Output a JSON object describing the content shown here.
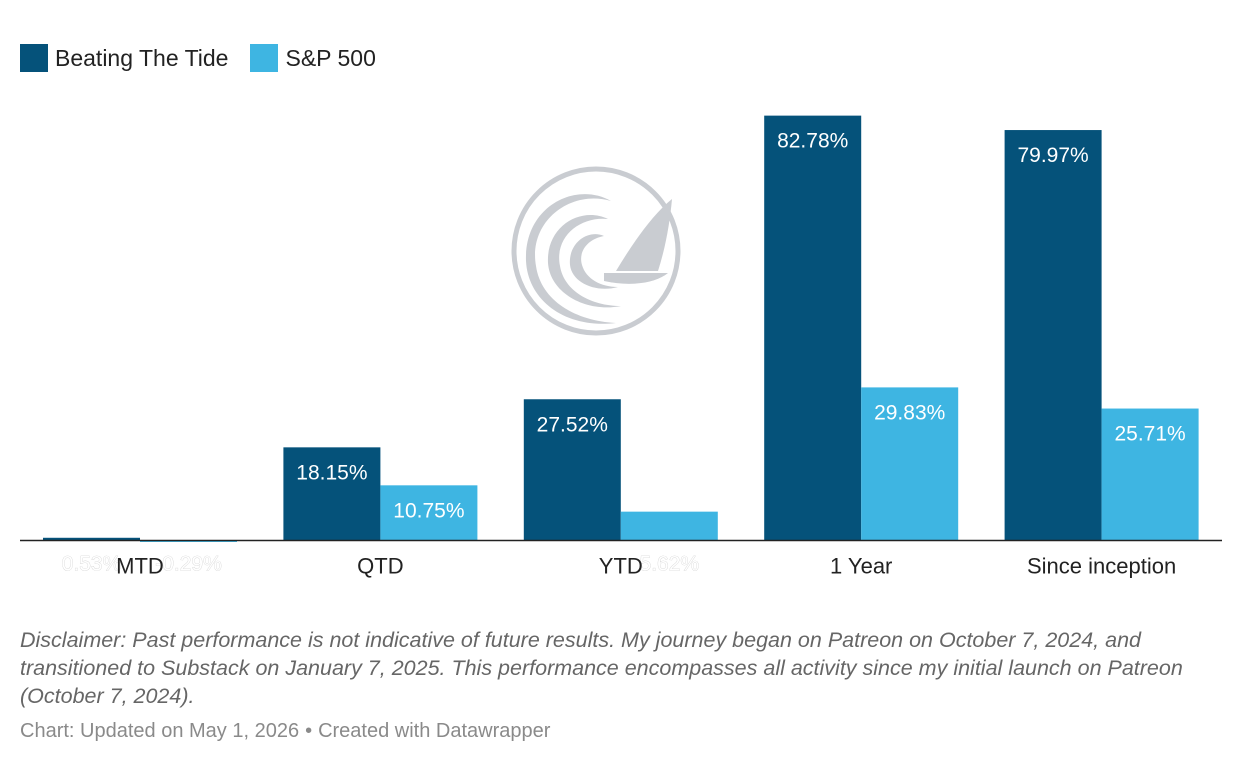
{
  "legend": {
    "items": [
      {
        "label": "Beating The Tide",
        "color": "#05527a"
      },
      {
        "label": "S&P 500",
        "color": "#3eb5e2"
      }
    ]
  },
  "chart_data": {
    "type": "bar",
    "title": "",
    "xlabel": "",
    "ylabel": "",
    "ylim": [
      0,
      83
    ],
    "grid": false,
    "legend_position": "top-left",
    "categories": [
      "MTD",
      "QTD",
      "YTD",
      "1 Year",
      "Since inception"
    ],
    "series": [
      {
        "name": "Beating The Tide",
        "color": "#05527a",
        "values": [
          0.53,
          18.15,
          27.52,
          82.78,
          79.97
        ],
        "labels": [
          "0.53%",
          "18.15%",
          "27.52%",
          "82.78%",
          "79.97%"
        ]
      },
      {
        "name": "S&P 500",
        "color": "#3eb5e2",
        "values": [
          -0.29,
          10.75,
          5.62,
          29.83,
          25.71
        ],
        "labels": [
          "-0.29%",
          "10.75%",
          "5.62%",
          "29.83%",
          "25.71%"
        ]
      }
    ]
  },
  "notes": "Disclaimer: Past performance is not indicative of future results. My journey began on Patreon on October 7, 2024, and transitioned to Substack on January 7, 2025. This performance encompasses all activity since my initial launch on Patreon (October 7, 2024).",
  "footer": {
    "chart_label": "Chart: Updated on May 1, 2026",
    "separator": "•",
    "created_with": "Created with Datawrapper"
  },
  "watermark": {
    "icon": "wave-sail-logo-icon",
    "color": "#c9ccd1"
  }
}
